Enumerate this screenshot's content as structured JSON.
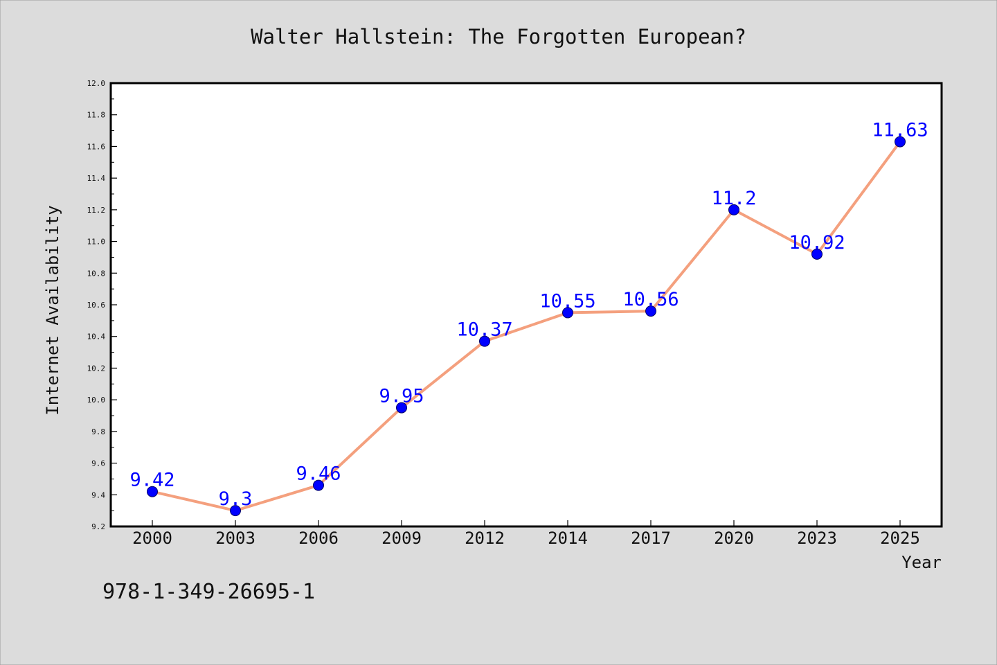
{
  "chart_data": {
    "type": "line",
    "title": "Walter Hallstein: The Forgotten European?",
    "xlabel": "Year",
    "ylabel": "Internet Availability",
    "categories": [
      "2000",
      "2003",
      "2006",
      "2009",
      "2012",
      "2014",
      "2017",
      "2020",
      "2023",
      "2025"
    ],
    "series": [
      {
        "name": "",
        "values": [
          9.42,
          9.3,
          9.46,
          9.95,
          10.37,
          10.55,
          10.56,
          11.2,
          10.92,
          11.63
        ],
        "data_labels": [
          "9.42",
          "9.3",
          "9.46",
          "9.95",
          "10.37",
          "10.55",
          "10.56",
          "11.2",
          "10.92",
          "11.63"
        ]
      }
    ],
    "ylim": [
      9.2,
      12.0
    ],
    "yticks": [
      "9.2",
      "9.4",
      "9.6",
      "9.8",
      "10.0",
      "10.2",
      "10.4",
      "10.6",
      "10.8",
      "11.0",
      "11.2",
      "11.4",
      "11.6",
      "11.8",
      "12.0"
    ],
    "grid": false,
    "legend": "none",
    "line_color": "#f4a07e",
    "marker_color": "#0000ff",
    "label_color": "#0000ff",
    "background_color": "#dcdcdc",
    "plot_background": "#ffffff"
  },
  "footer_text": "978-1-349-26695-1"
}
